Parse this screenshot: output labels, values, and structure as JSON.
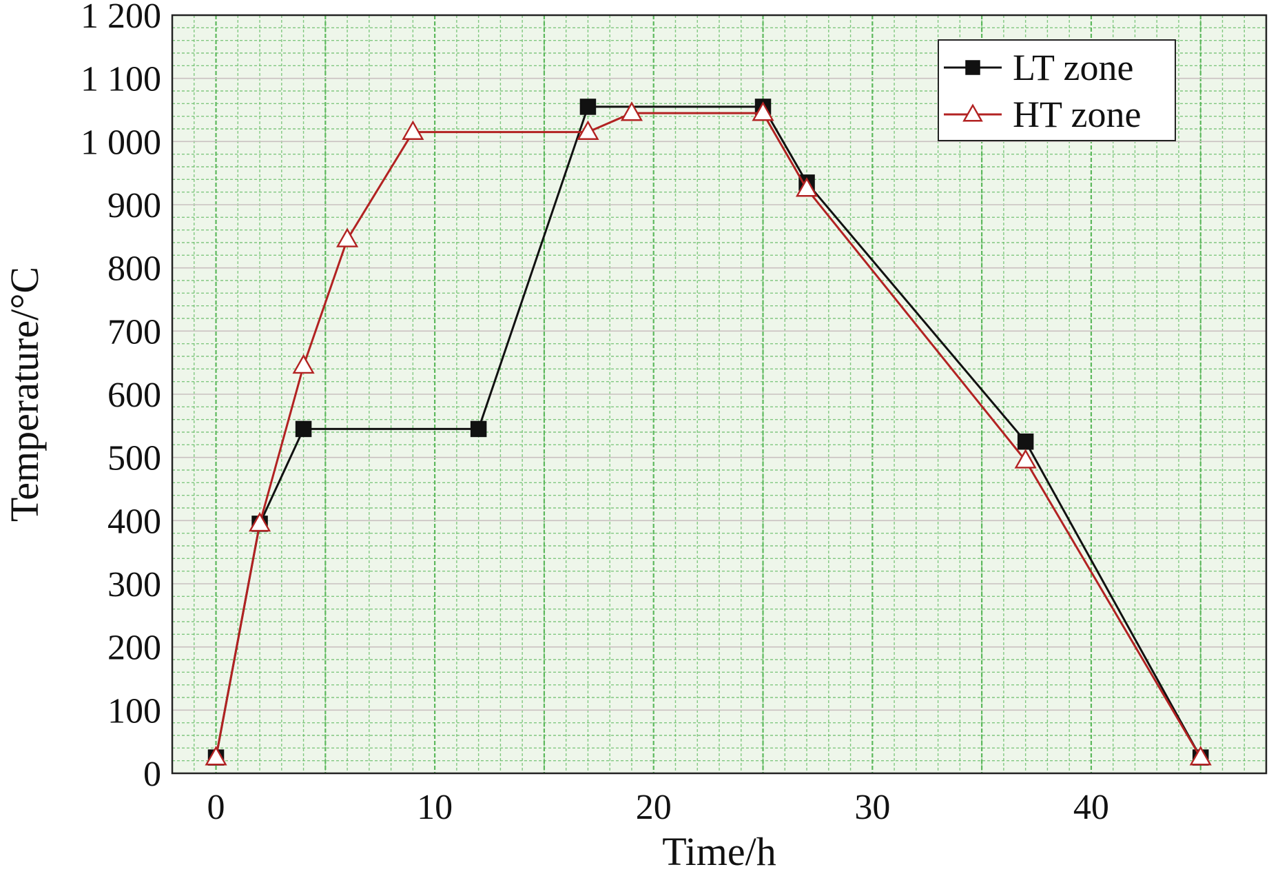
{
  "chart_data": {
    "type": "line",
    "title": "",
    "xlabel": "Time/h",
    "ylabel": "Temperature/°C",
    "xlim": [
      -2,
      48
    ],
    "ylim": [
      0,
      1200
    ],
    "x_ticks": [
      0,
      10,
      20,
      30,
      40
    ],
    "x_tick_labels": [
      "0",
      "10",
      "20",
      "30",
      "40"
    ],
    "y_ticks": [
      0,
      100,
      200,
      300,
      400,
      500,
      600,
      700,
      800,
      900,
      1000,
      1100,
      1200
    ],
    "y_tick_labels": [
      "0",
      "100",
      "200",
      "300",
      "400",
      "500",
      "600",
      "700",
      "800",
      "900",
      "1 000",
      "1 100",
      "1 200"
    ],
    "grid": true,
    "grid_color": "#5cb85c",
    "background": "#eef6ea",
    "legend_position": "top-right",
    "series": [
      {
        "name": "LT zone",
        "color": "#111111",
        "marker": "square-filled",
        "x": [
          0,
          2,
          4,
          12,
          17,
          25,
          27,
          37,
          45
        ],
        "y": [
          25,
          395,
          545,
          545,
          1055,
          1055,
          935,
          525,
          25
        ]
      },
      {
        "name": "HT zone",
        "color": "#b22222",
        "marker": "triangle-open",
        "x": [
          0,
          2,
          4,
          6,
          9,
          17,
          19,
          25,
          27,
          37,
          45
        ],
        "y": [
          25,
          395,
          645,
          845,
          1015,
          1015,
          1045,
          1045,
          925,
          495,
          25
        ]
      }
    ]
  }
}
